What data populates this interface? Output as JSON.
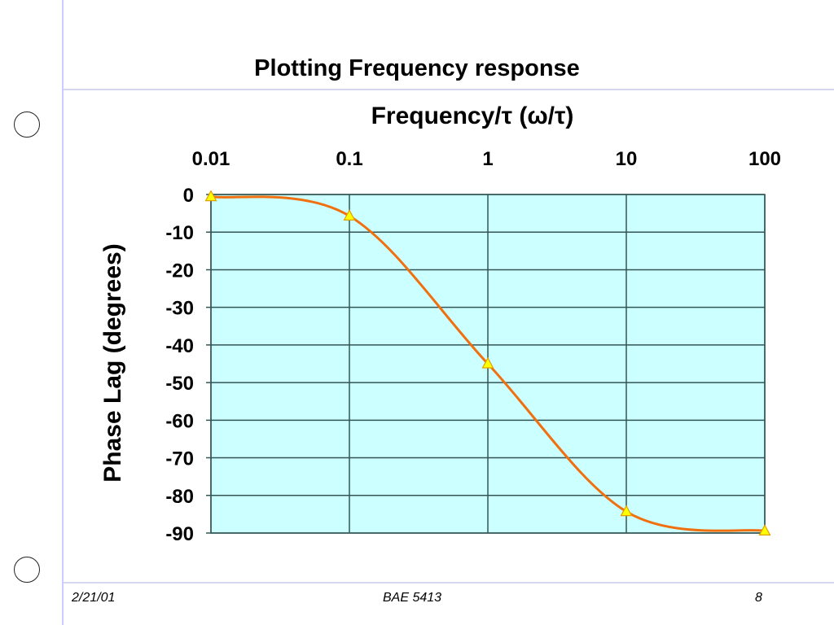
{
  "slide": {
    "title": "Plotting Frequency response",
    "footer_date": "2/21/01",
    "footer_course": "BAE 5413",
    "footer_page": "8"
  },
  "colors": {
    "plot_bg": "#ccffff",
    "line": "#f07010",
    "marker": "#ffff00",
    "marker_edge": "#e0a000",
    "grid": "#335555"
  },
  "chart_data": {
    "type": "line",
    "title": "",
    "xlabel": "Frequency/τ (ω/τ)",
    "ylabel": "Phase Lag (degrees)",
    "x_scale": "log",
    "x_axis_position": "top",
    "xlim": [
      0.01,
      100
    ],
    "ylim": [
      -90,
      0
    ],
    "x_ticks": [
      "0.01",
      "0.1",
      "1",
      "10",
      "100"
    ],
    "y_ticks": [
      "0",
      "-10",
      "-20",
      "-30",
      "-40",
      "-50",
      "-60",
      "-70",
      "-80",
      "-90"
    ],
    "grid": true,
    "series": [
      {
        "name": "Phase Lag",
        "x": [
          0.01,
          0.1,
          1,
          10,
          100
        ],
        "y": [
          -0.57,
          -5.71,
          -45,
          -84.29,
          -89.43
        ],
        "marker": "triangle",
        "smooth": true
      }
    ]
  }
}
